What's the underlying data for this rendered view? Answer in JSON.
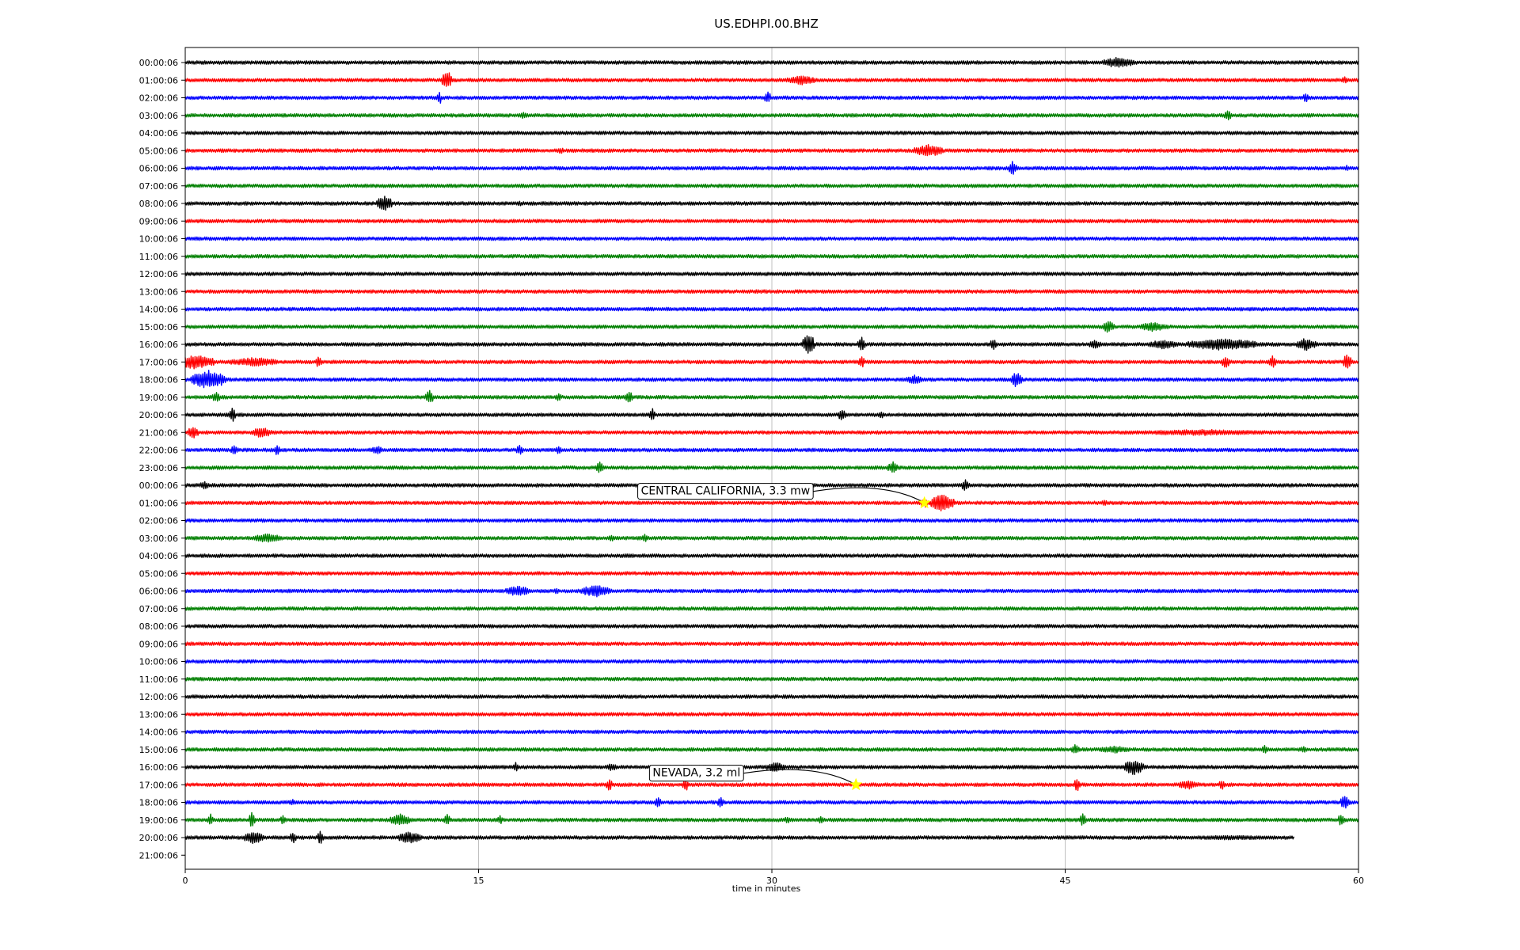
{
  "chart_data": {
    "type": "line",
    "title": "US.EDHPI.00.BHZ",
    "xlabel": "time in minutes",
    "xlim": [
      0,
      60
    ],
    "x_ticks": [
      0,
      15,
      30,
      45,
      60
    ],
    "x_tick_labels": [
      "0",
      "15",
      "30",
      "45",
      "60"
    ],
    "grid": "vertical",
    "trace_colors": [
      "#000000",
      "#ff0000",
      "#0000ff",
      "#008000"
    ],
    "row_labels": [
      "00:00:06",
      "01:00:06",
      "02:00:06",
      "03:00:06",
      "04:00:06",
      "05:00:06",
      "06:00:06",
      "07:00:06",
      "08:00:06",
      "09:00:06",
      "10:00:06",
      "11:00:06",
      "12:00:06",
      "13:00:06",
      "14:00:06",
      "15:00:06",
      "16:00:06",
      "17:00:06",
      "18:00:06",
      "19:00:06",
      "20:00:06",
      "21:00:06",
      "22:00:06",
      "23:00:06",
      "00:00:06",
      "01:00:06",
      "02:00:06",
      "03:00:06",
      "04:00:06",
      "05:00:06",
      "06:00:06",
      "07:00:06",
      "08:00:06",
      "09:00:06",
      "10:00:06",
      "11:00:06",
      "12:00:06",
      "13:00:06",
      "14:00:06",
      "15:00:06",
      "16:00:06",
      "17:00:06",
      "18:00:06",
      "19:00:06",
      "20:00:06",
      "21:00:06"
    ],
    "last_trace_end_minute": 56.7,
    "events": [
      {
        "row": 0,
        "minute": 47.7,
        "amp": 0.7,
        "dur": 1.6
      },
      {
        "row": 1,
        "minute": 13.4,
        "amp": 1.2,
        "dur": 0.5
      },
      {
        "row": 1,
        "minute": 31.5,
        "amp": 0.6,
        "dur": 1.5
      },
      {
        "row": 1,
        "minute": 59.3,
        "amp": 0.5,
        "dur": 0.3
      },
      {
        "row": 2,
        "minute": 13.0,
        "amp": 1.0,
        "dur": 0.2
      },
      {
        "row": 2,
        "minute": 29.8,
        "amp": 0.9,
        "dur": 0.3
      },
      {
        "row": 2,
        "minute": 57.3,
        "amp": 0.6,
        "dur": 0.3
      },
      {
        "row": 3,
        "minute": 17.3,
        "amp": 0.5,
        "dur": 0.4
      },
      {
        "row": 3,
        "minute": 53.3,
        "amp": 0.7,
        "dur": 0.4
      },
      {
        "row": 5,
        "minute": 19.2,
        "amp": 0.4,
        "dur": 0.4
      },
      {
        "row": 5,
        "minute": 38.0,
        "amp": 0.8,
        "dur": 1.5
      },
      {
        "row": 6,
        "minute": 42.3,
        "amp": 0.9,
        "dur": 0.4
      },
      {
        "row": 6,
        "minute": 59.4,
        "amp": 0.4,
        "dur": 0.2
      },
      {
        "row": 8,
        "minute": 10.2,
        "amp": 1.0,
        "dur": 0.8
      },
      {
        "row": 8,
        "minute": 17.1,
        "amp": 0.4,
        "dur": 0.2
      },
      {
        "row": 15,
        "minute": 47.2,
        "amp": 0.8,
        "dur": 0.6
      },
      {
        "row": 15,
        "minute": 49.5,
        "amp": 0.6,
        "dur": 1.5
      },
      {
        "row": 16,
        "minute": 31.9,
        "amp": 1.4,
        "dur": 0.6
      },
      {
        "row": 16,
        "minute": 34.6,
        "amp": 0.9,
        "dur": 0.4
      },
      {
        "row": 16,
        "minute": 41.3,
        "amp": 0.8,
        "dur": 0.3
      },
      {
        "row": 16,
        "minute": 46.5,
        "amp": 0.6,
        "dur": 0.6
      },
      {
        "row": 16,
        "minute": 50.0,
        "amp": 0.6,
        "dur": 1.5
      },
      {
        "row": 16,
        "minute": 53.0,
        "amp": 0.8,
        "dur": 3.5
      },
      {
        "row": 16,
        "minute": 57.3,
        "amp": 0.8,
        "dur": 1.0
      },
      {
        "row": 17,
        "minute": 0.5,
        "amp": 0.9,
        "dur": 2.0
      },
      {
        "row": 17,
        "minute": 3.5,
        "amp": 0.6,
        "dur": 2.5
      },
      {
        "row": 17,
        "minute": 6.8,
        "amp": 0.8,
        "dur": 0.3
      },
      {
        "row": 17,
        "minute": 34.6,
        "amp": 0.8,
        "dur": 0.3
      },
      {
        "row": 17,
        "minute": 53.2,
        "amp": 0.8,
        "dur": 0.4
      },
      {
        "row": 17,
        "minute": 55.6,
        "amp": 0.8,
        "dur": 0.4
      },
      {
        "row": 17,
        "minute": 59.4,
        "amp": 1.2,
        "dur": 0.4
      },
      {
        "row": 18,
        "minute": 1.2,
        "amp": 1.2,
        "dur": 1.8
      },
      {
        "row": 18,
        "minute": 37.3,
        "amp": 0.6,
        "dur": 0.8
      },
      {
        "row": 18,
        "minute": 42.5,
        "amp": 1.0,
        "dur": 0.6
      },
      {
        "row": 19,
        "minute": 1.6,
        "amp": 0.7,
        "dur": 0.4
      },
      {
        "row": 19,
        "minute": 12.5,
        "amp": 0.9,
        "dur": 0.4
      },
      {
        "row": 19,
        "minute": 19.1,
        "amp": 0.6,
        "dur": 0.3
      },
      {
        "row": 19,
        "minute": 22.7,
        "amp": 0.9,
        "dur": 0.4
      },
      {
        "row": 20,
        "minute": 2.4,
        "amp": 1.0,
        "dur": 0.3
      },
      {
        "row": 20,
        "minute": 23.9,
        "amp": 0.8,
        "dur": 0.3
      },
      {
        "row": 20,
        "minute": 33.6,
        "amp": 0.8,
        "dur": 0.4
      },
      {
        "row": 20,
        "minute": 35.6,
        "amp": 0.5,
        "dur": 0.3
      },
      {
        "row": 21,
        "minute": 0.4,
        "amp": 0.8,
        "dur": 0.6
      },
      {
        "row": 21,
        "minute": 3.9,
        "amp": 0.7,
        "dur": 1.0
      },
      {
        "row": 21,
        "minute": 52.0,
        "amp": 0.4,
        "dur": 7.0
      },
      {
        "row": 22,
        "minute": 2.5,
        "amp": 0.6,
        "dur": 0.4
      },
      {
        "row": 22,
        "minute": 4.7,
        "amp": 0.7,
        "dur": 0.3
      },
      {
        "row": 22,
        "minute": 9.8,
        "amp": 0.6,
        "dur": 0.5
      },
      {
        "row": 22,
        "minute": 17.1,
        "amp": 0.6,
        "dur": 0.4
      },
      {
        "row": 22,
        "minute": 19.1,
        "amp": 0.6,
        "dur": 0.3
      },
      {
        "row": 23,
        "minute": 21.2,
        "amp": 0.8,
        "dur": 0.4
      },
      {
        "row": 23,
        "minute": 36.2,
        "amp": 0.8,
        "dur": 0.5
      },
      {
        "row": 24,
        "minute": 1.0,
        "amp": 0.5,
        "dur": 0.6
      },
      {
        "row": 24,
        "minute": 39.9,
        "amp": 0.8,
        "dur": 0.4
      },
      {
        "row": 25,
        "minute": 37.8,
        "amp": 0.6,
        "dur": 0.5
      },
      {
        "row": 25,
        "minute": 38.7,
        "amp": 1.1,
        "dur": 1.2
      },
      {
        "row": 25,
        "minute": 47.0,
        "amp": 0.5,
        "dur": 0.3
      },
      {
        "row": 27,
        "minute": 4.2,
        "amp": 0.6,
        "dur": 1.5
      },
      {
        "row": 27,
        "minute": 21.8,
        "amp": 0.4,
        "dur": 0.4
      },
      {
        "row": 27,
        "minute": 23.5,
        "amp": 0.5,
        "dur": 0.4
      },
      {
        "row": 29,
        "minute": 28.0,
        "amp": 0.3,
        "dur": 0.3
      },
      {
        "row": 29,
        "minute": 56.2,
        "amp": 0.3,
        "dur": 0.4
      },
      {
        "row": 30,
        "minute": 17.0,
        "amp": 0.7,
        "dur": 1.2
      },
      {
        "row": 30,
        "minute": 19.0,
        "amp": 0.4,
        "dur": 0.3
      },
      {
        "row": 30,
        "minute": 21.0,
        "amp": 0.8,
        "dur": 1.5
      },
      {
        "row": 39,
        "minute": 45.5,
        "amp": 0.7,
        "dur": 0.4
      },
      {
        "row": 39,
        "minute": 47.5,
        "amp": 0.5,
        "dur": 1.5
      },
      {
        "row": 39,
        "minute": 55.2,
        "amp": 0.6,
        "dur": 0.3
      },
      {
        "row": 39,
        "minute": 57.2,
        "amp": 0.4,
        "dur": 0.4
      },
      {
        "row": 40,
        "minute": 16.9,
        "amp": 0.6,
        "dur": 0.3
      },
      {
        "row": 40,
        "minute": 21.8,
        "amp": 0.5,
        "dur": 0.6
      },
      {
        "row": 40,
        "minute": 30.2,
        "amp": 0.6,
        "dur": 1.0
      },
      {
        "row": 40,
        "minute": 48.5,
        "amp": 1.0,
        "dur": 1.0
      },
      {
        "row": 41,
        "minute": 21.7,
        "amp": 0.8,
        "dur": 0.3
      },
      {
        "row": 41,
        "minute": 25.6,
        "amp": 0.8,
        "dur": 0.3
      },
      {
        "row": 41,
        "minute": 45.6,
        "amp": 0.9,
        "dur": 0.3
      },
      {
        "row": 41,
        "minute": 51.3,
        "amp": 0.6,
        "dur": 1.0
      },
      {
        "row": 41,
        "minute": 53.0,
        "amp": 0.7,
        "dur": 0.3
      },
      {
        "row": 42,
        "minute": 5.5,
        "amp": 0.4,
        "dur": 0.5
      },
      {
        "row": 42,
        "minute": 24.2,
        "amp": 0.8,
        "dur": 0.3
      },
      {
        "row": 42,
        "minute": 27.4,
        "amp": 0.8,
        "dur": 0.3
      },
      {
        "row": 42,
        "minute": 59.3,
        "amp": 0.9,
        "dur": 0.5
      },
      {
        "row": 43,
        "minute": 1.3,
        "amp": 0.8,
        "dur": 0.3
      },
      {
        "row": 43,
        "minute": 3.4,
        "amp": 1.0,
        "dur": 0.3
      },
      {
        "row": 43,
        "minute": 5.0,
        "amp": 0.6,
        "dur": 0.3
      },
      {
        "row": 43,
        "minute": 11.0,
        "amp": 0.8,
        "dur": 1.0
      },
      {
        "row": 43,
        "minute": 13.4,
        "amp": 0.8,
        "dur": 0.3
      },
      {
        "row": 43,
        "minute": 16.1,
        "amp": 0.6,
        "dur": 0.3
      },
      {
        "row": 43,
        "minute": 30.8,
        "amp": 0.5,
        "dur": 0.3
      },
      {
        "row": 43,
        "minute": 32.5,
        "amp": 0.5,
        "dur": 0.3
      },
      {
        "row": 43,
        "minute": 45.9,
        "amp": 0.9,
        "dur": 0.3
      },
      {
        "row": 43,
        "minute": 59.1,
        "amp": 0.8,
        "dur": 0.3
      },
      {
        "row": 44,
        "minute": 3.5,
        "amp": 0.8,
        "dur": 1.0
      },
      {
        "row": 44,
        "minute": 5.5,
        "amp": 0.8,
        "dur": 0.3
      },
      {
        "row": 44,
        "minute": 6.9,
        "amp": 0.9,
        "dur": 0.3
      },
      {
        "row": 44,
        "minute": 11.5,
        "amp": 0.8,
        "dur": 1.2
      },
      {
        "row": 44,
        "minute": 53.5,
        "amp": 0.3,
        "dur": 6.0
      }
    ],
    "annotations": [
      {
        "text": "CENTRAL CALIFORNIA, 3.3 mw",
        "row": 25,
        "minute": 37.8,
        "label_minute": 23.1,
        "label_row": 24.3,
        "marker_color": "#ffff00"
      },
      {
        "text": "NEVADA, 3.2 ml",
        "row": 41,
        "minute": 34.3,
        "label_minute": 23.7,
        "label_row": 40.3,
        "marker_color": "#ffff00"
      }
    ]
  }
}
